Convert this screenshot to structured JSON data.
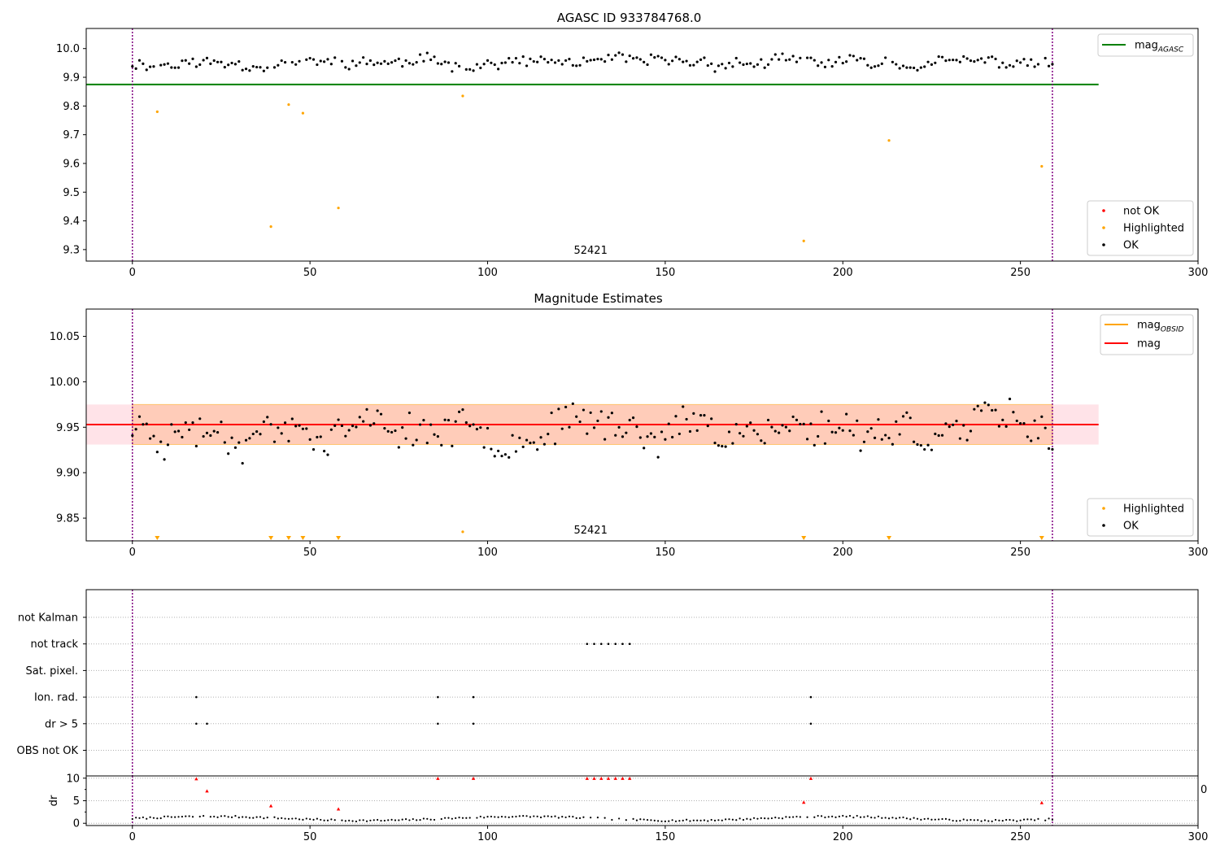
{
  "chart_data": [
    {
      "type": "scatter",
      "title": "AGASC ID 933784768.0",
      "annotation": "52421",
      "xlim": [
        -13,
        300
      ],
      "ylim": [
        9.26,
        10.07
      ],
      "xticks": [
        0,
        50,
        100,
        150,
        200,
        250,
        300
      ],
      "yticks": [
        9.3,
        9.4,
        9.5,
        9.6,
        9.7,
        9.8,
        9.9,
        10.0
      ],
      "vlines": [
        0,
        259
      ],
      "hline": {
        "name": "mag",
        "sub": "AGASC",
        "value": 9.875,
        "x_range": [
          -13,
          272
        ],
        "color": "#008000"
      },
      "legend_lines": [
        {
          "name": "mag",
          "sub": "AGASC",
          "color": "#008000"
        }
      ],
      "legend_markers": [
        {
          "name": "not OK",
          "color": "#ff0000"
        },
        {
          "name": "Highlighted",
          "color": "#ffa500"
        },
        {
          "name": "OK",
          "color": "#000000"
        }
      ],
      "series": [
        {
          "name": "OK",
          "color": "#000000",
          "base": 9.95,
          "amp": 0.03,
          "seed": 11,
          "except": [
            7,
            39,
            44,
            48,
            58,
            93,
            189,
            213,
            256
          ]
        },
        {
          "name": "Highlighted",
          "color": "#ffa500",
          "points": [
            [
              7,
              9.78
            ],
            [
              39,
              9.38
            ],
            [
              44,
              9.805
            ],
            [
              48,
              9.775
            ],
            [
              58,
              9.445
            ],
            [
              93,
              9.835
            ],
            [
              189,
              9.33
            ],
            [
              213,
              9.68
            ],
            [
              256,
              9.59
            ]
          ]
        }
      ]
    },
    {
      "type": "scatter",
      "title": "Magnitude Estimates",
      "annotation": "52421",
      "xlim": [
        -13,
        300
      ],
      "ylim": [
        9.825,
        10.08
      ],
      "xticks": [
        0,
        50,
        100,
        150,
        200,
        250,
        300
      ],
      "yticks": [
        9.85,
        9.9,
        9.95,
        10.0,
        10.05
      ],
      "vlines": [
        0,
        259
      ],
      "mag": 9.953,
      "band_outer": [
        9.931,
        9.975
      ],
      "band_inner": [
        9.931,
        9.975
      ],
      "band_x": [
        -13,
        272
      ],
      "legend_lines": [
        {
          "name": "mag",
          "sub": "OBSID",
          "color": "#ffa500"
        },
        {
          "name": "mag",
          "sub": "",
          "color": "#ff0000"
        }
      ],
      "legend_markers": [
        {
          "name": "Highlighted",
          "color": "#ffa500"
        },
        {
          "name": "OK",
          "color": "#000000"
        }
      ],
      "series": [
        {
          "name": "OK",
          "color": "#000000",
          "base": 9.95,
          "amp": 0.03,
          "seed": 23
        },
        {
          "name": "Highlighted",
          "color": "#ffa500",
          "points": [
            [
              93,
              9.835
            ]
          ]
        },
        {
          "name": "Highlighted-offscale",
          "color": "#ffa500",
          "x": [
            7,
            39,
            44,
            48,
            58,
            189,
            213,
            256
          ]
        }
      ]
    },
    {
      "type": "scatter",
      "title": "",
      "xlim": [
        -13,
        300
      ],
      "xticks": [
        0,
        50,
        100,
        150,
        200,
        250,
        300
      ],
      "vlines": [
        0,
        259
      ],
      "flag_rows": [
        "not Kalman",
        "not track",
        "Sat. pixel.",
        "Ion. rad.",
        "dr > 5",
        "OBS not OK"
      ],
      "flag_points": {
        "not track": [
          128,
          130,
          132,
          134,
          136,
          138,
          140
        ],
        "Ion. rad.": [
          18,
          86,
          96,
          191
        ],
        "dr > 5": [
          18,
          21,
          86,
          96,
          191
        ]
      },
      "dr_label": "dr",
      "dr_yticks": [
        0,
        5,
        10
      ],
      "dr_ylim": [
        -0.5,
        10.5
      ],
      "dr_side_label": "0",
      "dr_flagged": [
        [
          18,
          9.8
        ],
        [
          21,
          7.1
        ],
        [
          39,
          3.8
        ],
        [
          58,
          3.1
        ],
        [
          86,
          9.9
        ],
        [
          96,
          9.9
        ],
        [
          128,
          9.9
        ],
        [
          130,
          9.9
        ],
        [
          132,
          9.9
        ],
        [
          134,
          9.9
        ],
        [
          136,
          9.9
        ],
        [
          138,
          9.9
        ],
        [
          140,
          9.9
        ],
        [
          189,
          4.6
        ],
        [
          191,
          9.9
        ],
        [
          256,
          4.5
        ]
      ],
      "dr_colors": {
        "ok": "#000000",
        "flagged": "#ff0000"
      }
    }
  ]
}
